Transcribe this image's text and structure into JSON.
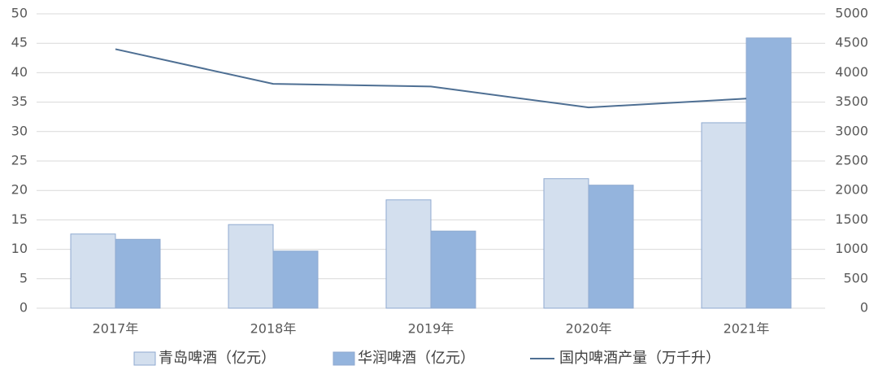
{
  "chart_data": {
    "type": "bar",
    "categories": [
      "2017年",
      "2018年",
      "2019年",
      "2020年",
      "2021年"
    ],
    "series": [
      {
        "name": "青岛啤酒（亿元）",
        "type": "bar",
        "color": "#d3dfee",
        "values": [
          12.6,
          14.2,
          18.4,
          22.0,
          31.5
        ]
      },
      {
        "name": "华润啤酒（亿元）",
        "type": "bar",
        "color": "#94b4dd",
        "values": [
          11.7,
          9.7,
          13.1,
          20.9,
          45.9
        ]
      },
      {
        "name": "国内啤酒产量（万千升）",
        "type": "line",
        "axis": "y2",
        "color": "#4e6f93",
        "values": [
          4400,
          3810,
          3765,
          3410,
          3560
        ]
      }
    ],
    "ylim": [
      0,
      50
    ],
    "yticks": [
      0,
      5,
      10,
      15,
      20,
      25,
      30,
      35,
      40,
      45,
      50
    ],
    "y2lim": [
      0,
      5000
    ],
    "y2ticks": [
      0,
      500,
      1000,
      1500,
      2000,
      2500,
      3000,
      3500,
      4000,
      4500,
      5000
    ],
    "grid": true
  }
}
